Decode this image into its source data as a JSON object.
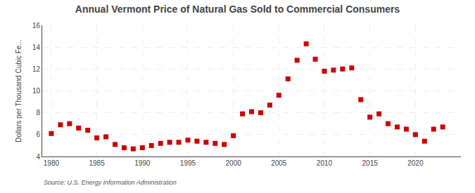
{
  "chart_data": {
    "type": "scatter",
    "title": "Annual Vermont Price of Natural Gas Sold to Commercial Consumers",
    "ylabel": "Dollars per Thousand Cubic Fe...",
    "annotations": [
      "Source: U.S. Energy Information Administration"
    ],
    "x": [
      1980,
      1981,
      1982,
      1983,
      1984,
      1985,
      1986,
      1987,
      1988,
      1989,
      1990,
      1991,
      1992,
      1993,
      1994,
      1995,
      1996,
      1997,
      1998,
      1999,
      2000,
      2001,
      2002,
      2003,
      2004,
      2005,
      2006,
      2007,
      2008,
      2009,
      2010,
      2011,
      2012,
      2013,
      2014,
      2015,
      2016,
      2017,
      2018,
      2019,
      2020,
      2021,
      2022,
      2023
    ],
    "values": [
      6.1,
      6.9,
      7.0,
      6.6,
      6.4,
      5.7,
      5.8,
      5.1,
      4.8,
      4.7,
      4.8,
      5.0,
      5.2,
      5.3,
      5.3,
      5.5,
      5.4,
      5.3,
      5.2,
      5.1,
      5.9,
      7.9,
      8.1,
      8.0,
      8.7,
      9.6,
      11.1,
      12.8,
      14.3,
      12.9,
      11.8,
      11.9,
      12.0,
      12.1,
      9.2,
      7.6,
      7.9,
      7.0,
      6.7,
      6.5,
      6.0,
      5.4,
      6.5,
      6.7
    ],
    "color": "#cc0000",
    "marker": "square",
    "xlim": [
      1979,
      2025
    ],
    "ylim": [
      4,
      16
    ],
    "xticks": [
      1980,
      1985,
      1990,
      1995,
      2000,
      2005,
      2010,
      2015,
      2020
    ],
    "yticks": [
      4,
      6,
      8,
      10,
      12,
      14,
      16
    ],
    "grid": true
  }
}
